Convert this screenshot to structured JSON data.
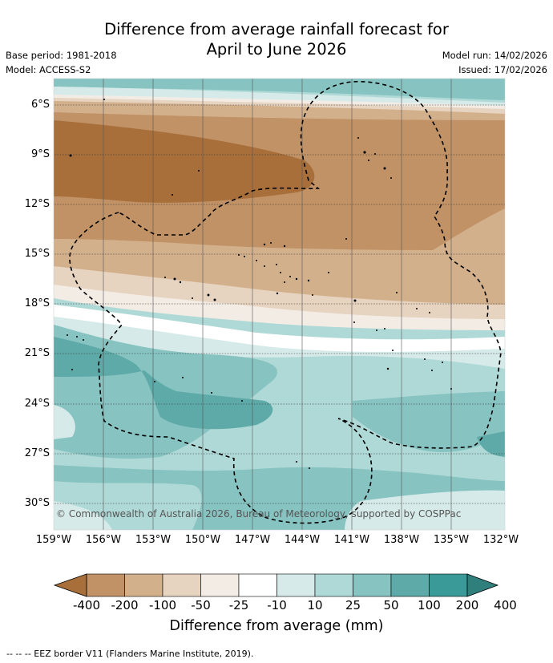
{
  "title_line1": "Difference from average rainfall forecast for",
  "title_line2": "April to June 2026",
  "meta": {
    "base_period": "Base period: 1981-2018",
    "model": "Model: ACCESS-S2",
    "model_run": "Model run: 14/02/2026",
    "issued": "Issued: 17/02/2026"
  },
  "map": {
    "lat_labels": [
      "6°S",
      "9°S",
      "12°S",
      "15°S",
      "18°S",
      "21°S",
      "24°S",
      "27°S",
      "30°S"
    ],
    "lon_labels": [
      "159°W",
      "156°W",
      "153°W",
      "150°W",
      "147°W",
      "144°W",
      "141°W",
      "138°W",
      "135°W",
      "132°W"
    ],
    "copyright": "© Commonwealth of Australia 2026, Bureau of Meteorology, supported by COSPPac"
  },
  "legend": {
    "ticks": [
      "-400",
      "-200",
      "-100",
      "-50",
      "-25",
      "-10",
      "10",
      "25",
      "50",
      "100",
      "200",
      "400"
    ],
    "colors": [
      "#a86f3a",
      "#c09266",
      "#d3b08c",
      "#e6d3c0",
      "#f2ece5",
      "#ffffff",
      "#d6ebe9",
      "#afd9d6",
      "#86c3c1",
      "#5eaaa8",
      "#399a98",
      "#2f7f7d"
    ],
    "title": "Difference from average (mm)"
  },
  "footer": "--  --  -- EEZ border V11 (Flanders Marine Institute, 2019)."
}
